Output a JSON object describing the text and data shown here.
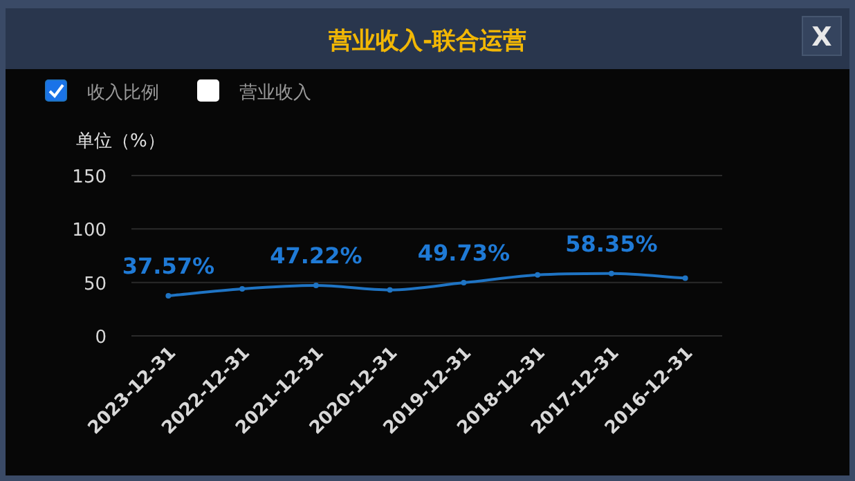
{
  "chart_data": {
    "type": "line",
    "title": "营业收入-联合运营",
    "ylabel": "单位（%）",
    "annotations": [
      "X"
    ],
    "categories": [
      "2023-12-31",
      "2022-12-31",
      "2021-12-31",
      "2020-12-31",
      "2019-12-31",
      "2018-12-31",
      "2017-12-31",
      "2016-12-31"
    ],
    "series": [
      {
        "name": "收入比例",
        "color": "#1f74c4",
        "values": [
          37.57,
          44,
          47.22,
          43,
          49.73,
          57,
          58.35,
          54
        ],
        "value_labels": [
          "37.57%",
          null,
          "47.22%",
          null,
          "49.73%",
          null,
          "58.35%",
          null
        ]
      },
      {
        "name": "营业收入",
        "color": "#ffffff",
        "values": [
          null,
          null,
          null,
          null,
          null,
          null,
          null,
          null
        ]
      }
    ],
    "ylim": [
      0,
      150
    ],
    "yticks": [
      0,
      50,
      100,
      150
    ],
    "grid": "y",
    "legend": "top left",
    "marker": "circle"
  }
}
